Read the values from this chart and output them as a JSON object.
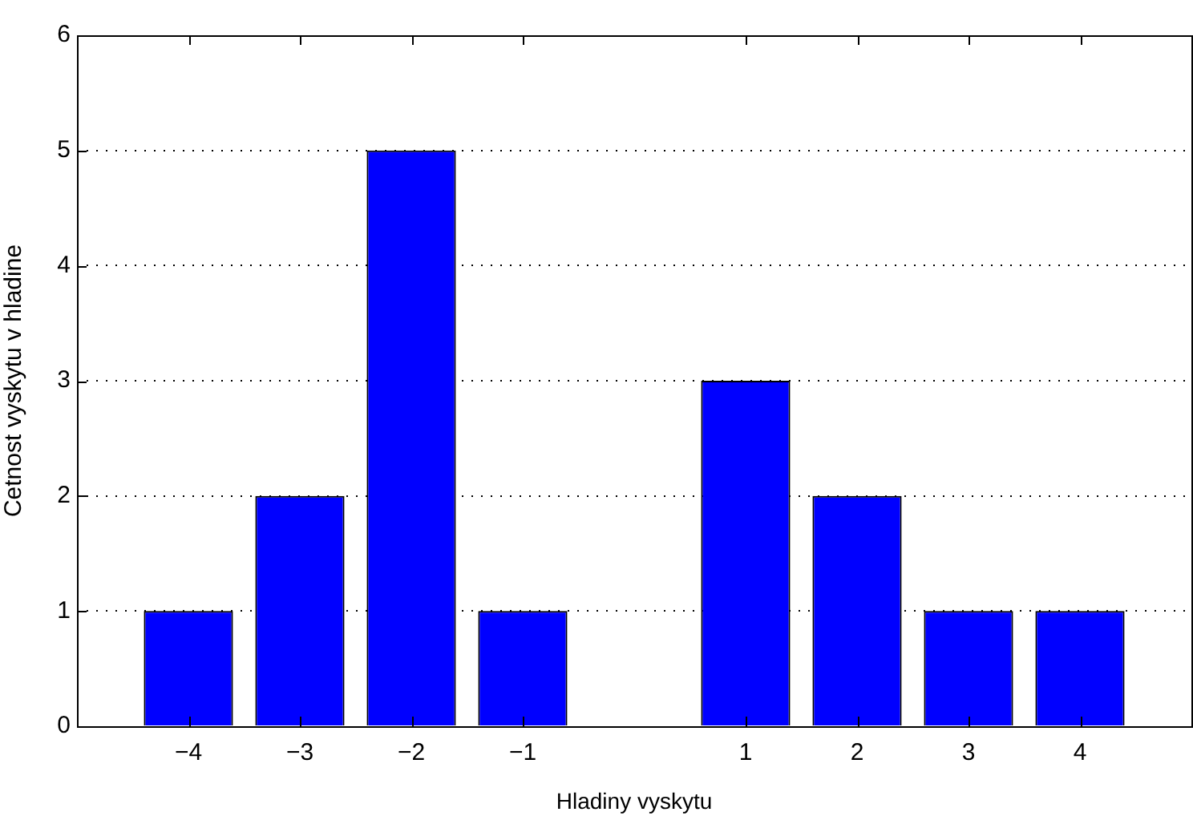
{
  "chart_data": {
    "type": "bar",
    "xlabel": "Hladiny vyskytu",
    "ylabel": "Cetnost vyskytu v hladine",
    "x": [
      -4,
      -3,
      -2,
      -1,
      1,
      2,
      3,
      4
    ],
    "values": [
      1,
      2,
      5,
      1,
      3,
      2,
      1,
      1
    ],
    "color": "#0000ff",
    "xlim": [
      -5,
      5
    ],
    "xticks": [
      {
        "value": -4,
        "label": "−4"
      },
      {
        "value": -3,
        "label": "−3"
      },
      {
        "value": -2,
        "label": "−2"
      },
      {
        "value": -1,
        "label": "−1"
      },
      1,
      2,
      3,
      4
    ],
    "ylim": [
      0,
      6
    ],
    "yticks": [
      0,
      1,
      2,
      3,
      4,
      5,
      6
    ],
    "grid": "y",
    "legend": false
  }
}
